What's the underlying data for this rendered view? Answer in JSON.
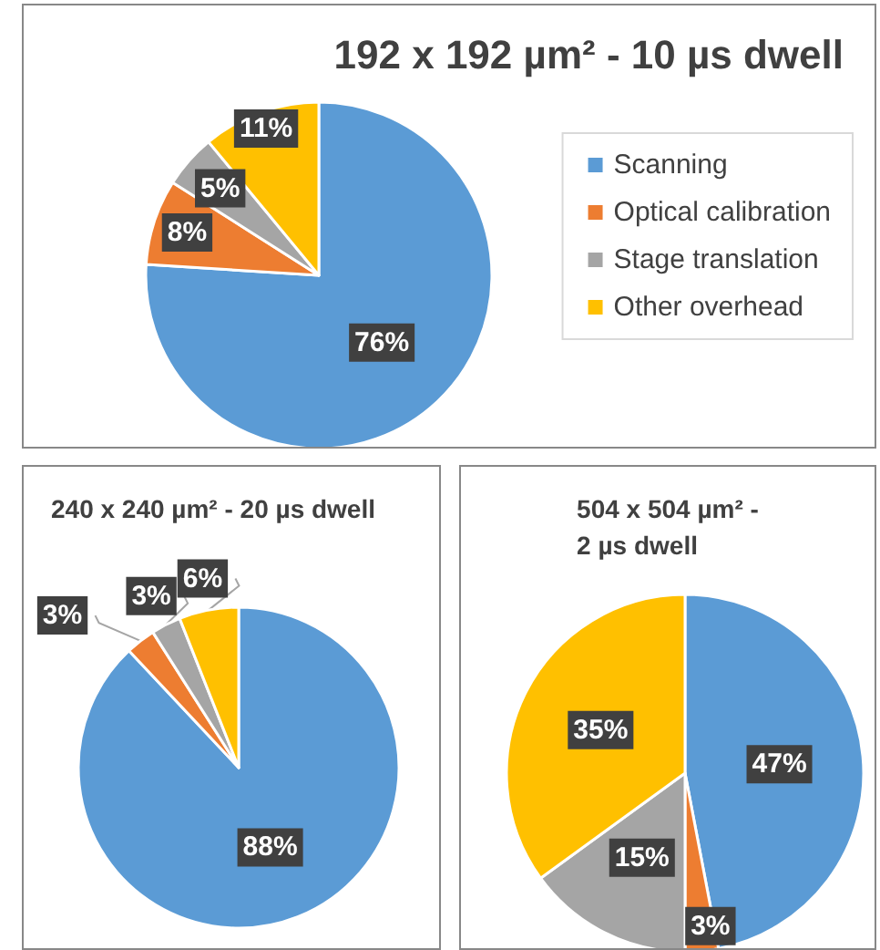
{
  "chart_data": [
    {
      "type": "pie",
      "title": "192 x 192 µm² - 10 µs dwell",
      "categories": [
        "Scanning",
        "Optical calibration",
        "Stage translation",
        "Other overhead"
      ],
      "values": [
        76,
        8,
        5,
        11
      ],
      "colors": [
        "#5b9bd5",
        "#ed7d31",
        "#a5a5a5",
        "#ffc000"
      ],
      "value_labels": [
        "76%",
        "8%",
        "5%",
        "11%"
      ],
      "legend": "right"
    },
    {
      "type": "pie",
      "title": "240 x 240 µm² - 20 µs dwell",
      "categories": [
        null,
        null,
        null,
        null
      ],
      "values": [
        88,
        3,
        3,
        6
      ],
      "colors": [
        "#5b9bd5",
        "#ed7d31",
        "#a5a5a5",
        "#ffc000"
      ],
      "value_labels": [
        "88%",
        "3%",
        "3%",
        "6%"
      ],
      "legend": false
    },
    {
      "type": "pie",
      "title": "504 x 504 µm² -\n2 µs dwell",
      "categories": [
        null,
        null,
        null,
        null
      ],
      "values": [
        47,
        3,
        15,
        35
      ],
      "colors": [
        "#5b9bd5",
        "#ed7d31",
        "#a5a5a5",
        "#ffc000"
      ],
      "value_labels": [
        "47%",
        "3%",
        "15%",
        "35%"
      ],
      "legend": false
    }
  ]
}
